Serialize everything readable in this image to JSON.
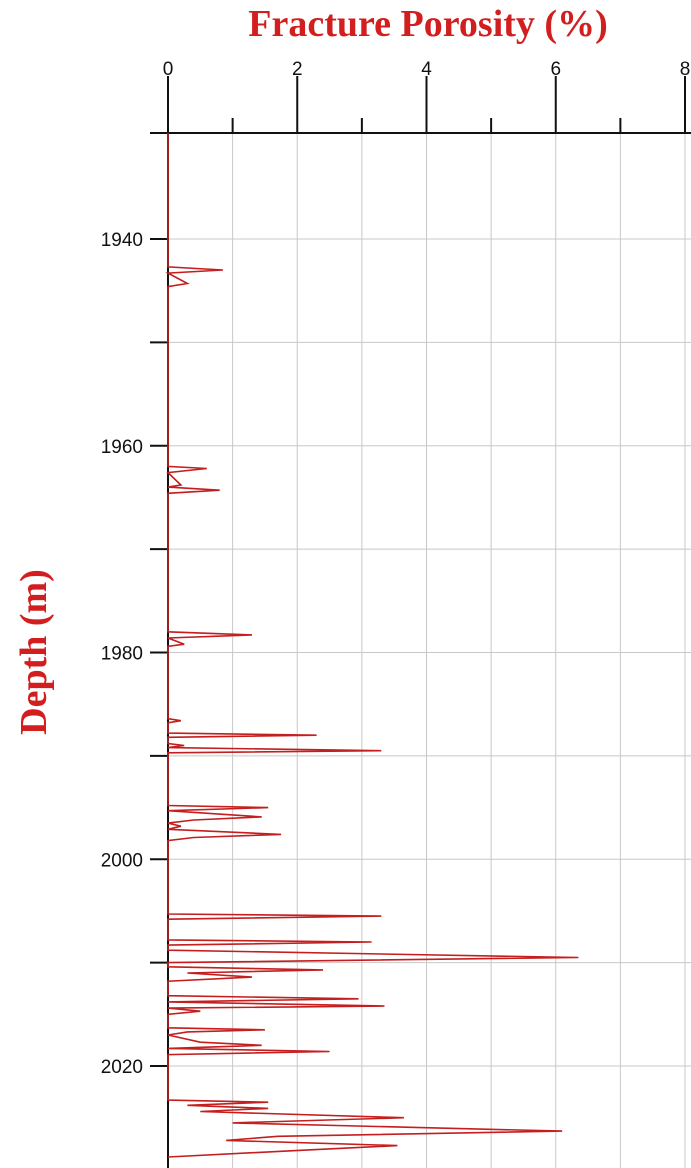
{
  "chart_data": {
    "type": "line",
    "title": "Fracture Porosity (%)",
    "xlabel": "Fracture Porosity (%)",
    "ylabel": "Depth (m)",
    "xlim": [
      0,
      8
    ],
    "ylim": [
      1930,
      2030
    ],
    "x_ticks": [
      "0",
      "2",
      "4",
      "6",
      "8"
    ],
    "y_ticks": [
      "1940",
      "1960",
      "1980",
      "2000",
      "2020"
    ],
    "x_axis_position": "top",
    "y_inverted": true,
    "grid": true,
    "line_color": "#c41e1e",
    "series": [
      {
        "points": [
          [
            0,
            1922
          ],
          [
            0,
            1942.7
          ],
          [
            0.85,
            1943
          ],
          [
            0,
            1943.3
          ],
          [
            0.3,
            1944.3
          ],
          [
            0,
            1944.6
          ],
          [
            0,
            1962.0
          ],
          [
            0.6,
            1962.2
          ],
          [
            0,
            1962.6
          ],
          [
            0.2,
            1963.8
          ],
          [
            0,
            1964.0
          ],
          [
            0.8,
            1964.3
          ],
          [
            0,
            1964.6
          ],
          [
            0,
            1978.0
          ],
          [
            1.3,
            1978.3
          ],
          [
            0,
            1978.6
          ],
          [
            0.25,
            1979.2
          ],
          [
            0,
            1979.4
          ],
          [
            0,
            1986.4
          ],
          [
            0.2,
            1986.6
          ],
          [
            0,
            1986.8
          ],
          [
            0,
            1987.8
          ],
          [
            2.3,
            1988.0
          ],
          [
            0,
            1988.2
          ],
          [
            0,
            1988.8
          ],
          [
            0.25,
            1989.0
          ],
          [
            0,
            1989.2
          ],
          [
            3.3,
            1989.5
          ],
          [
            0,
            1989.7
          ],
          [
            0,
            1994.8
          ],
          [
            1.55,
            1995.0
          ],
          [
            0,
            1995.3
          ],
          [
            1.45,
            1995.9
          ],
          [
            0.4,
            1996.2
          ],
          [
            0,
            1996.5
          ],
          [
            0.2,
            1996.8
          ],
          [
            0,
            1997.1
          ],
          [
            1.75,
            1997.6
          ],
          [
            0.4,
            1997.9
          ],
          [
            0,
            1998.2
          ],
          [
            0,
            2005.3
          ],
          [
            3.3,
            2005.5
          ],
          [
            0,
            2005.8
          ],
          [
            0,
            2007.8
          ],
          [
            3.15,
            2008.0
          ],
          [
            0,
            2008.3
          ],
          [
            0,
            2008.8
          ],
          [
            6.35,
            2009.5
          ],
          [
            0,
            2010.0
          ],
          [
            0,
            2010.4
          ],
          [
            2.4,
            2010.7
          ],
          [
            0.3,
            2011.0
          ],
          [
            1.3,
            2011.4
          ],
          [
            0,
            2011.8
          ],
          [
            0,
            2013.2
          ],
          [
            2.95,
            2013.5
          ],
          [
            0,
            2013.8
          ],
          [
            3.35,
            2014.2
          ],
          [
            0,
            2014.4
          ],
          [
            0.5,
            2014.7
          ],
          [
            0,
            2015.0
          ],
          [
            0,
            2016.3
          ],
          [
            1.5,
            2016.5
          ],
          [
            0.3,
            2016.7
          ],
          [
            0,
            2017.0
          ],
          [
            0.5,
            2017.7
          ],
          [
            1.45,
            2018.0
          ],
          [
            0,
            2018.3
          ],
          [
            2.5,
            2018.6
          ],
          [
            0,
            2018.9
          ],
          [
            0,
            2023.3
          ],
          [
            1.55,
            2023.5
          ],
          [
            0.3,
            2023.8
          ],
          [
            1.55,
            2024.1
          ],
          [
            0.5,
            2024.4
          ],
          [
            3.65,
            2025.0
          ],
          [
            1.0,
            2025.5
          ],
          [
            6.1,
            2026.3
          ],
          [
            1.7,
            2026.8
          ],
          [
            0.9,
            2027.2
          ],
          [
            3.55,
            2027.7
          ],
          [
            1.9,
            2028.2
          ],
          [
            0,
            2028.8
          ]
        ]
      }
    ]
  }
}
